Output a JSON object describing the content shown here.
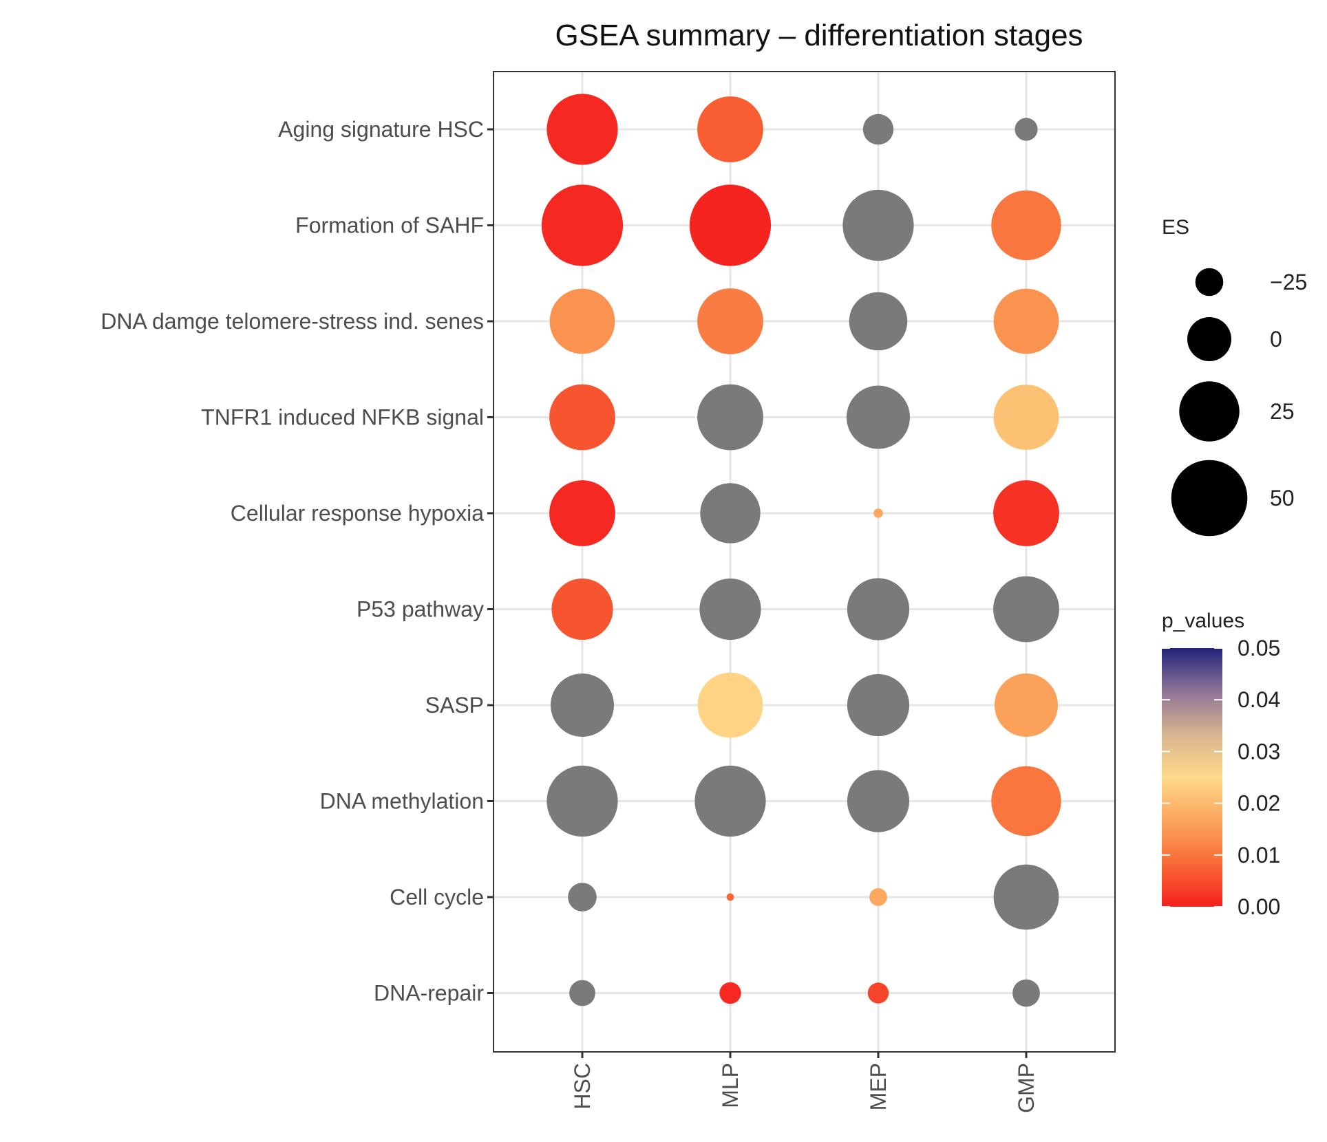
{
  "chart_data": {
    "type": "dot",
    "title": "GSEA summary – differentiation stages",
    "xlabel": "",
    "ylabel": "",
    "categories": [
      "HSC",
      "MLP",
      "MEP",
      "GMP"
    ],
    "pathways": [
      "Aging signature HSC",
      "Formation of SAHF",
      "DNA damge telomere-stress ind. senes",
      "TNFR1 induced NFKB signal",
      "Cellular response hypoxia",
      "P53 pathway",
      "SASP",
      "DNA methylation",
      "Cell cycle",
      "DNA-repair"
    ],
    "points": [
      {
        "pathway": "Aging signature HSC",
        "stage": "HSC",
        "es": 42,
        "p_value": 0.001,
        "significant": true
      },
      {
        "pathway": "Aging signature HSC",
        "stage": "MLP",
        "es": 34,
        "p_value": 0.007,
        "significant": true
      },
      {
        "pathway": "Aging signature HSC",
        "stage": "MEP",
        "es": -21,
        "p_value": null,
        "significant": false
      },
      {
        "pathway": "Aging signature HSC",
        "stage": "GMP",
        "es": -33,
        "p_value": null,
        "significant": false
      },
      {
        "pathway": "Formation of SAHF",
        "stage": "HSC",
        "es": 58,
        "p_value": 0.001,
        "significant": true
      },
      {
        "pathway": "Formation of SAHF",
        "stage": "MLP",
        "es": 58,
        "p_value": 0.0005,
        "significant": true
      },
      {
        "pathway": "Formation of SAHF",
        "stage": "MEP",
        "es": 42,
        "p_value": null,
        "significant": false
      },
      {
        "pathway": "Formation of SAHF",
        "stage": "GMP",
        "es": 40,
        "p_value": 0.01,
        "significant": true
      },
      {
        "pathway": "DNA damge telomere-stress ind. senes",
        "stage": "HSC",
        "es": 33,
        "p_value": 0.014,
        "significant": true
      },
      {
        "pathway": "DNA damge telomere-stress ind. senes",
        "stage": "MLP",
        "es": 34,
        "p_value": 0.011,
        "significant": true
      },
      {
        "pathway": "DNA damge telomere-stress ind. senes",
        "stage": "MEP",
        "es": 22,
        "p_value": null,
        "significant": false
      },
      {
        "pathway": "DNA damge telomere-stress ind. senes",
        "stage": "GMP",
        "es": 33,
        "p_value": 0.014,
        "significant": true
      },
      {
        "pathway": "TNFR1 induced NFKB signal",
        "stage": "HSC",
        "es": 34,
        "p_value": 0.006,
        "significant": true
      },
      {
        "pathway": "TNFR1 induced NFKB signal",
        "stage": "MLP",
        "es": 34,
        "p_value": null,
        "significant": false
      },
      {
        "pathway": "TNFR1 induced NFKB signal",
        "stage": "MEP",
        "es": 30,
        "p_value": null,
        "significant": false
      },
      {
        "pathway": "TNFR1 induced NFKB signal",
        "stage": "GMP",
        "es": 33,
        "p_value": 0.021,
        "significant": true
      },
      {
        "pathway": "Cellular response hypoxia",
        "stage": "HSC",
        "es": 34,
        "p_value": 0.001,
        "significant": true
      },
      {
        "pathway": "Cellular response hypoxia",
        "stage": "MLP",
        "es": 25,
        "p_value": null,
        "significant": false
      },
      {
        "pathway": "Cellular response hypoxia",
        "stage": "MEP",
        "es": -54,
        "p_value": 0.017,
        "significant": true
      },
      {
        "pathway": "Cellular response hypoxia",
        "stage": "GMP",
        "es": 34,
        "p_value": 0.002,
        "significant": true
      },
      {
        "pathway": "P53 pathway",
        "stage": "HSC",
        "es": 27,
        "p_value": 0.006,
        "significant": true
      },
      {
        "pathway": "P53 pathway",
        "stage": "MLP",
        "es": 27,
        "p_value": null,
        "significant": false
      },
      {
        "pathway": "P53 pathway",
        "stage": "MEP",
        "es": 28,
        "p_value": null,
        "significant": false
      },
      {
        "pathway": "P53 pathway",
        "stage": "GMP",
        "es": 34,
        "p_value": null,
        "significant": false
      },
      {
        "pathway": "SASP",
        "stage": "HSC",
        "es": 30,
        "p_value": null,
        "significant": false
      },
      {
        "pathway": "SASP",
        "stage": "MLP",
        "es": 33,
        "p_value": 0.024,
        "significant": true
      },
      {
        "pathway": "SASP",
        "stage": "MEP",
        "es": 28,
        "p_value": null,
        "significant": false
      },
      {
        "pathway": "SASP",
        "stage": "GMP",
        "es": 30,
        "p_value": 0.016,
        "significant": true
      },
      {
        "pathway": "DNA methylation",
        "stage": "HSC",
        "es": 42,
        "p_value": null,
        "significant": false
      },
      {
        "pathway": "DNA methylation",
        "stage": "MLP",
        "es": 42,
        "p_value": null,
        "significant": false
      },
      {
        "pathway": "DNA methylation",
        "stage": "MEP",
        "es": 28,
        "p_value": null,
        "significant": false
      },
      {
        "pathway": "DNA methylation",
        "stage": "GMP",
        "es": 40,
        "p_value": 0.01,
        "significant": true
      },
      {
        "pathway": "Cell cycle",
        "stage": "HSC",
        "es": -24,
        "p_value": null,
        "significant": false
      },
      {
        "pathway": "Cell cycle",
        "stage": "MLP",
        "es": -57,
        "p_value": 0.008,
        "significant": true
      },
      {
        "pathway": "Cell cycle",
        "stage": "MEP",
        "es": -41,
        "p_value": 0.017,
        "significant": true
      },
      {
        "pathway": "Cell cycle",
        "stage": "GMP",
        "es": 33,
        "p_value": null,
        "significant": false
      },
      {
        "pathway": "DNA-repair",
        "stage": "HSC",
        "es": -28,
        "p_value": null,
        "significant": false
      },
      {
        "pathway": "DNA-repair",
        "stage": "MLP",
        "es": -35,
        "p_value": 0.001,
        "significant": true
      },
      {
        "pathway": "DNA-repair",
        "stage": "MEP",
        "es": -36,
        "p_value": 0.004,
        "significant": true
      },
      {
        "pathway": "DNA-repair",
        "stage": "GMP",
        "es": -26,
        "p_value": null,
        "significant": false
      }
    ],
    "size_legend": {
      "title": "ES",
      "breaks": [
        -25,
        0,
        25,
        50
      ],
      "labels": [
        "−25",
        "0",
        "25",
        "50"
      ]
    },
    "color_legend": {
      "title": "p_values",
      "range": [
        0,
        0.05
      ],
      "ticks": [
        0.05,
        0.04,
        0.03,
        0.02,
        0.01,
        0.0
      ],
      "tick_labels": [
        "0.05",
        "0.04",
        "0.03",
        "0.02",
        "0.01",
        "0.00"
      ],
      "stops": [
        "#F5201E",
        "#F86A36",
        "#FBA65C",
        "#FFD98A",
        "#D7B48F",
        "#8E7397",
        "#22237C"
      ]
    },
    "nonsignificant_color": "#7a7a7a",
    "grid": true,
    "legend_position": "right"
  }
}
